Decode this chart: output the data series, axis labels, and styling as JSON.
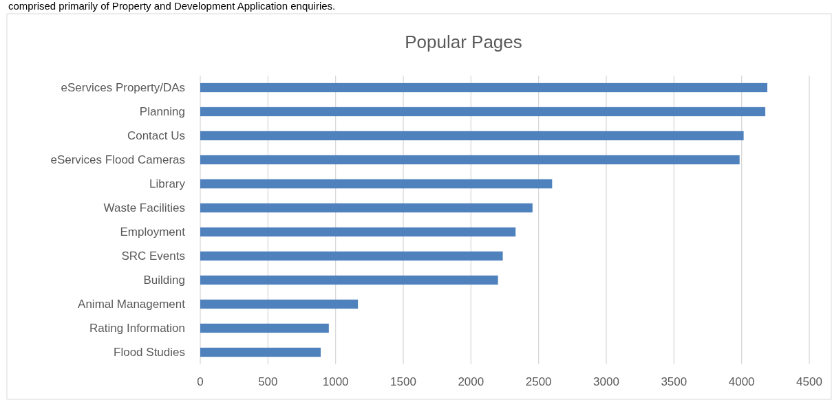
{
  "chart_data": {
    "type": "bar",
    "orientation": "horizontal",
    "title": "Popular Pages",
    "annotations": [
      "comprised primarily of Property and Development Application enquiries."
    ],
    "categories": [
      "eServices Property/DAs",
      "Planning",
      "Contact Us",
      "eServices Flood Cameras",
      "Library",
      "Waste Facilities",
      "Employment",
      "SRC Events",
      "Building",
      "Animal Management",
      "Rating Information",
      "Flood Studies"
    ],
    "values": [
      4190,
      4175,
      4015,
      3985,
      2600,
      2455,
      2330,
      2235,
      2200,
      1165,
      950,
      890
    ],
    "color": "#4f81bd",
    "xlim": [
      0,
      4500
    ],
    "xticks": [
      0,
      500,
      1000,
      1500,
      2000,
      2500,
      3000,
      3500,
      4000,
      4500
    ],
    "grid": "x"
  }
}
